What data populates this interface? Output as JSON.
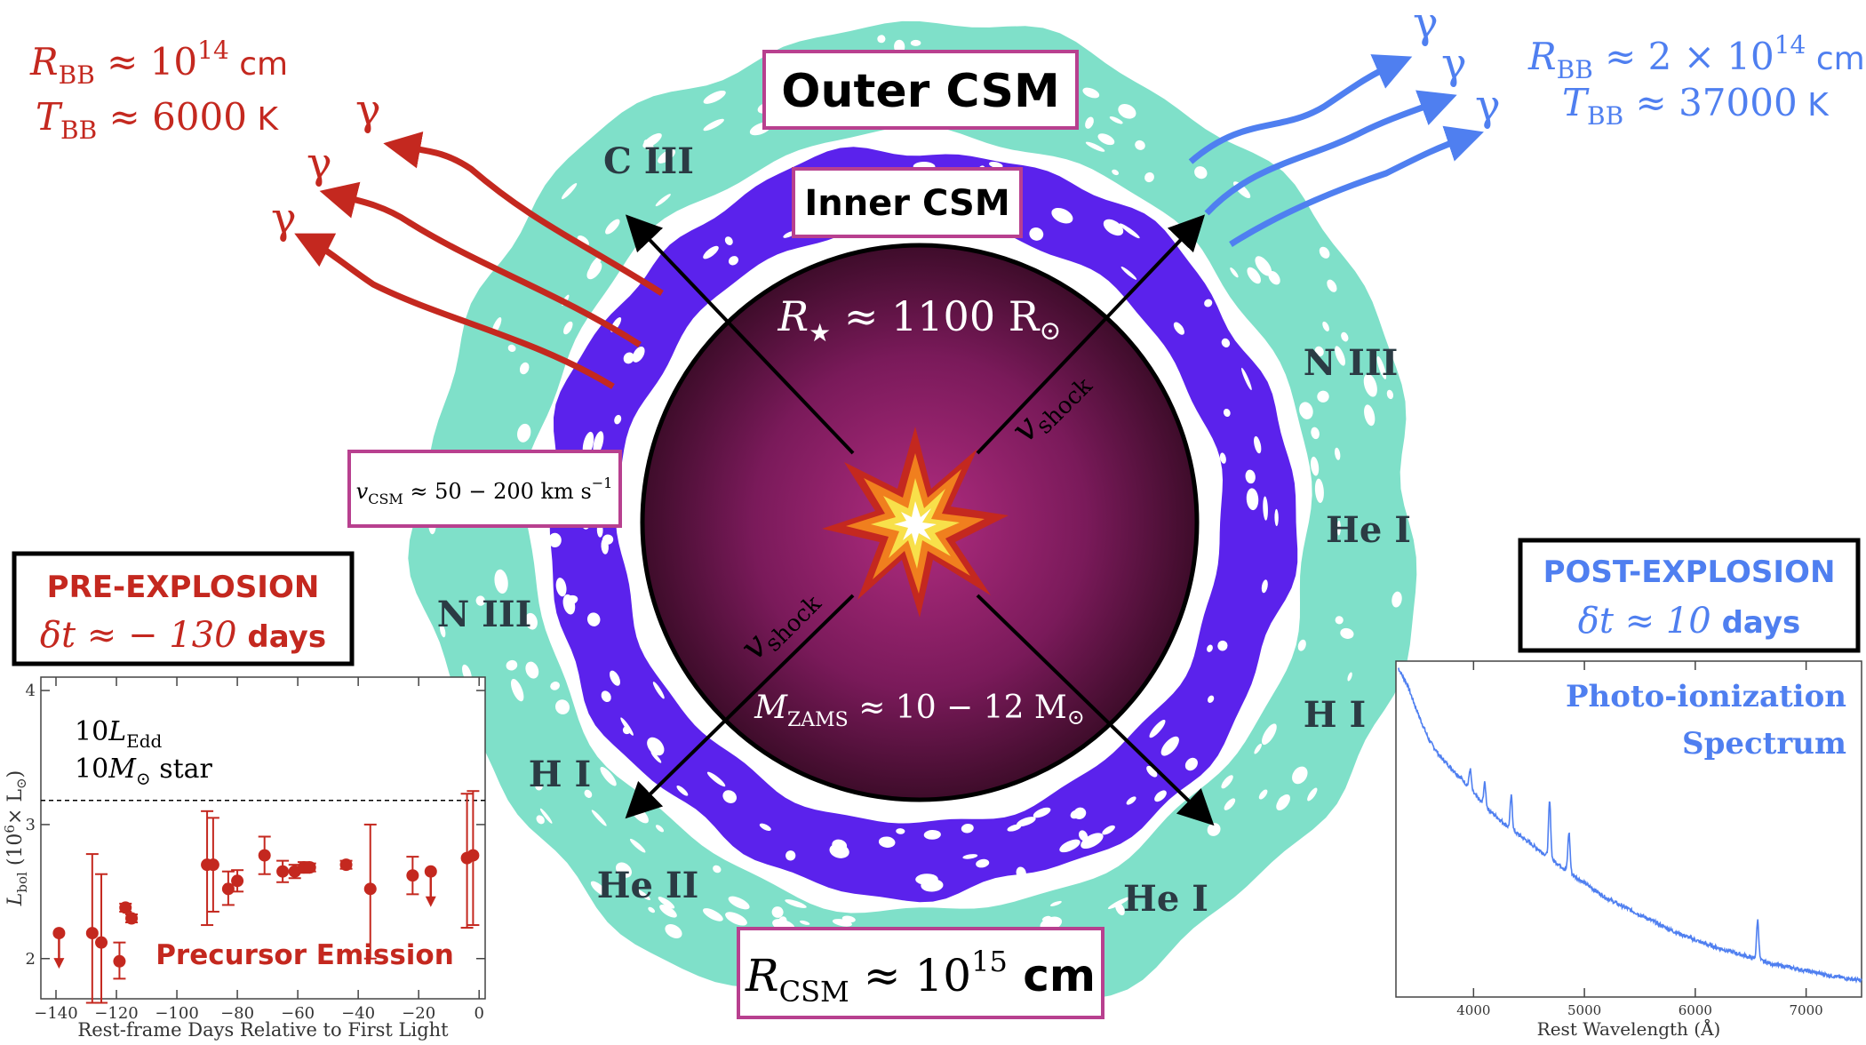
{
  "colors": {
    "red": "#c4281f",
    "blue": "#4f7ff0",
    "teal": "#7fe0c9",
    "purple": "#5b22ec",
    "magenta_box": "#b8408f",
    "star_outer": "#3e0c2a",
    "star_inner": "#a52a7b",
    "dark_label": "#2b3b44"
  },
  "labels": {
    "outer_csm": "Outer CSM",
    "inner_csm": "Inner CSM",
    "r_csm_prefix": "R",
    "r_csm_sub": "CSM",
    "r_csm_rest": " ≈ 10",
    "r_csm_exp": "15",
    "r_csm_unit": " cm",
    "r_star_prefix": "R",
    "r_star_sub": "★",
    "r_star_rest": " ≈ 1100 R",
    "r_star_sun": "⊙",
    "m_zams_prefix": "M",
    "m_zams_sub": "ZAMS",
    "m_zams_rest": " ≈ 10 − 12 M",
    "m_zams_sun": "⊙",
    "v_shock": "v",
    "v_shock_sub": "shock",
    "v_csm_prefix": "v",
    "v_csm_sub": "CSM",
    "v_csm_rest": " ≈ 50 − 200 km s",
    "v_csm_exp": "−1",
    "gamma": "γ"
  },
  "ions": [
    "C III",
    "N III",
    "He I",
    "H I",
    "He I",
    "He II",
    "H I",
    "N III"
  ],
  "pre_explosion": {
    "title": "PRE-EXPLOSION",
    "dt_prefix": "δt ≈ − 130",
    "dt_unit": " days",
    "rbb_prefix": "R",
    "rbb_sub": "BB",
    "rbb_rest": " ≈ 10",
    "rbb_exp": "14",
    "rbb_unit": " cm",
    "tbb_prefix": "T",
    "tbb_sub": "BB",
    "tbb_rest": " ≈ 6000",
    "tbb_unit": " K"
  },
  "post_explosion": {
    "title": "POST-EXPLOSION",
    "dt_prefix": "δt ≈ 10",
    "dt_unit": " days",
    "rbb_prefix": "R",
    "rbb_sub": "BB",
    "rbb_rest": " ≈ 2 × 10",
    "rbb_exp": "14",
    "rbb_unit": " cm",
    "tbb_prefix": "T",
    "tbb_sub": "BB",
    "tbb_rest": " ≈ 37000",
    "tbb_unit": " K"
  },
  "chart_data": [
    {
      "type": "scatter",
      "title": "Precursor Emission",
      "xlabel": "Rest-frame Days Relative to First Light",
      "ylabel_prefix": "L",
      "ylabel_sub": "bol",
      "ylabel_rest": " (10",
      "ylabel_exp": "6",
      "ylabel_unit": "× L",
      "ylabel_sun": "⊙",
      "ylabel_close": ")",
      "xlim": [
        -145,
        2
      ],
      "ylim": [
        1.7,
        4.1
      ],
      "xticks": [
        "−140",
        "−120",
        "−100",
        "−80",
        "−60",
        "−40",
        "−20",
        "0"
      ],
      "xtick_values": [
        -140,
        -120,
        -100,
        -80,
        -60,
        -40,
        -20,
        0
      ],
      "yticks": [
        "2",
        "3",
        "4"
      ],
      "ytick_values": [
        2,
        3,
        4
      ],
      "reference_line": {
        "y": 3.18,
        "label_line1_prefix": "10",
        "label_line1_sym": "L",
        "label_line1_sub": "Edd",
        "label_line2_prefix": "10",
        "label_line2_sym": "M",
        "label_line2_sun": "⊙",
        "label_line2_rest": " star"
      },
      "points": [
        {
          "x": -139,
          "y": 2.19,
          "lo": 2.19,
          "hi": 2.19,
          "upper_limit": true
        },
        {
          "x": -128,
          "y": 2.19,
          "lo": 1.67,
          "hi": 2.78
        },
        {
          "x": -125,
          "y": 2.12,
          "lo": 1.67,
          "hi": 2.63
        },
        {
          "x": -119,
          "y": 1.98,
          "lo": 1.85,
          "hi": 2.12
        },
        {
          "x": -117,
          "y": 2.38,
          "lo": 2.35,
          "hi": 2.41
        },
        {
          "x": -115,
          "y": 2.3,
          "lo": 2.27,
          "hi": 2.33
        },
        {
          "x": -90,
          "y": 2.7,
          "lo": 2.25,
          "hi": 3.1
        },
        {
          "x": -88,
          "y": 2.7,
          "lo": 2.35,
          "hi": 3.05
        },
        {
          "x": -83,
          "y": 2.52,
          "lo": 2.4,
          "hi": 2.65
        },
        {
          "x": -80,
          "y": 2.58,
          "lo": 2.5,
          "hi": 2.66
        },
        {
          "x": -71,
          "y": 2.77,
          "lo": 2.63,
          "hi": 2.91
        },
        {
          "x": -65,
          "y": 2.65,
          "lo": 2.57,
          "hi": 2.73
        },
        {
          "x": -61,
          "y": 2.65,
          "lo": 2.6,
          "hi": 2.7
        },
        {
          "x": -58,
          "y": 2.68,
          "lo": 2.64,
          "hi": 2.72
        },
        {
          "x": -56,
          "y": 2.68,
          "lo": 2.65,
          "hi": 2.71
        },
        {
          "x": -44,
          "y": 2.7,
          "lo": 2.67,
          "hi": 2.73
        },
        {
          "x": -36,
          "y": 2.52,
          "lo": 2.0,
          "hi": 3.0
        },
        {
          "x": -22,
          "y": 2.62,
          "lo": 2.48,
          "hi": 2.76
        },
        {
          "x": -16,
          "y": 2.65,
          "lo": 2.65,
          "hi": 2.65,
          "upper_limit": true
        },
        {
          "x": -4,
          "y": 2.75,
          "lo": 2.23,
          "hi": 3.23
        },
        {
          "x": -2,
          "y": 2.77,
          "lo": 2.25,
          "hi": 3.25
        }
      ]
    },
    {
      "type": "line",
      "title_line1": "Photo-ionization",
      "title_line2": "Spectrum",
      "xlabel": "Rest Wavelength (Å)",
      "xlim": [
        3300,
        7500
      ],
      "xticks": [
        "4000",
        "5000",
        "6000",
        "7000"
      ],
      "xtick_values": [
        4000,
        5000,
        6000,
        7000
      ],
      "ylim": [
        0,
        1
      ],
      "continuum": [
        [
          3320,
          1.0
        ],
        [
          3400,
          0.95
        ],
        [
          3500,
          0.86
        ],
        [
          3600,
          0.78
        ],
        [
          3700,
          0.73
        ],
        [
          3900,
          0.66
        ],
        [
          4100,
          0.58
        ],
        [
          4300,
          0.52
        ],
        [
          4500,
          0.47
        ],
        [
          4700,
          0.42
        ],
        [
          4900,
          0.37
        ],
        [
          5200,
          0.3
        ],
        [
          5500,
          0.25
        ],
        [
          5800,
          0.2
        ],
        [
          6100,
          0.16
        ],
        [
          6400,
          0.13
        ],
        [
          6700,
          0.1
        ],
        [
          7000,
          0.08
        ],
        [
          7300,
          0.06
        ],
        [
          7500,
          0.05
        ]
      ],
      "emission_lines": [
        [
          3970,
          0.06
        ],
        [
          4101,
          0.07
        ],
        [
          4340,
          0.1
        ],
        [
          4686,
          0.17
        ],
        [
          4861,
          0.12
        ],
        [
          6563,
          0.12
        ]
      ]
    }
  ]
}
